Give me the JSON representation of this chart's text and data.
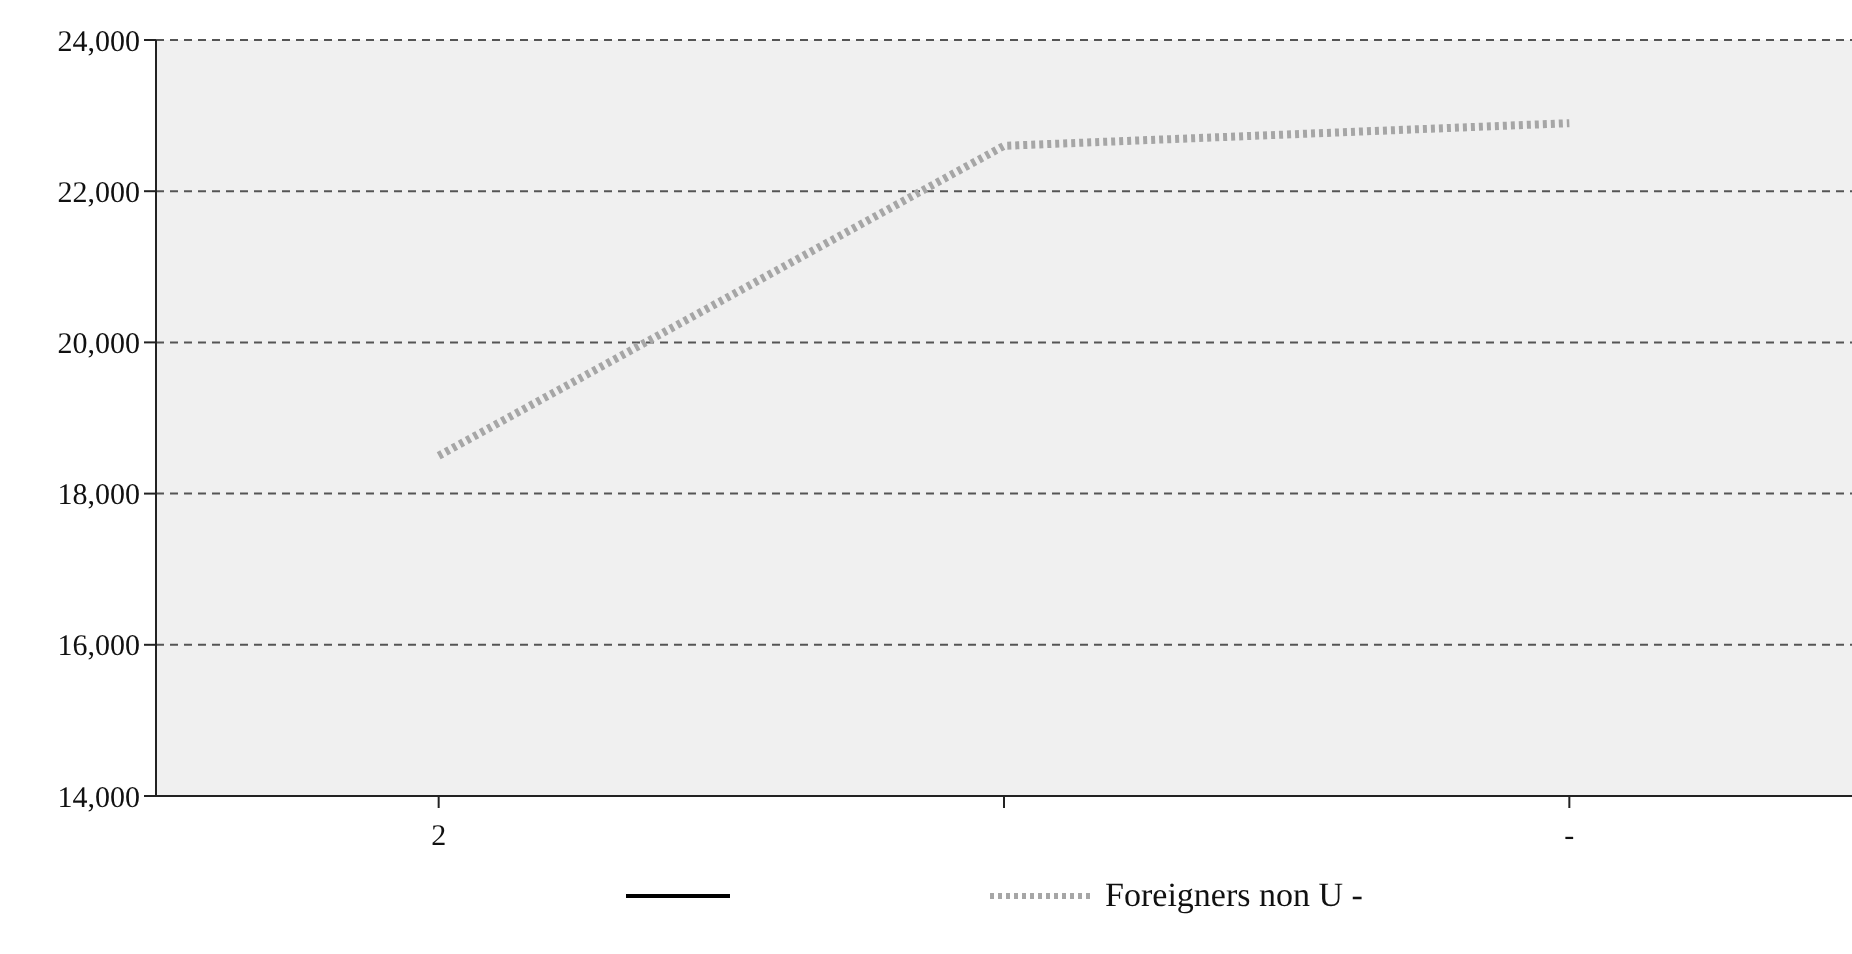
{
  "chart_data": {
    "type": "line",
    "categories": [
      "2",
      null,
      "-"
    ],
    "series": [
      {
        "color": "#000000",
        "line_style": "solid",
        "values": [
          null,
          null,
          null
        ]
      },
      {
        "name": "Foreigners non U -",
        "color": "#a6a6a6",
        "line_style": "dotted",
        "values": [
          18500,
          22600,
          22900
        ]
      }
    ],
    "ylim": [
      14000,
      24000
    ],
    "yticks": [
      {
        "value": 14000,
        "label": "14,000"
      },
      {
        "value": 16000,
        "label": "16,000"
      },
      {
        "value": 18000,
        "label": "18,000"
      },
      {
        "value": 20000,
        "label": "20,000"
      },
      {
        "value": 22000,
        "label": "22,000"
      },
      {
        "value": 24000,
        "label": "24,000"
      }
    ],
    "grid": "y",
    "legend": "bottom",
    "marker": "none"
  }
}
